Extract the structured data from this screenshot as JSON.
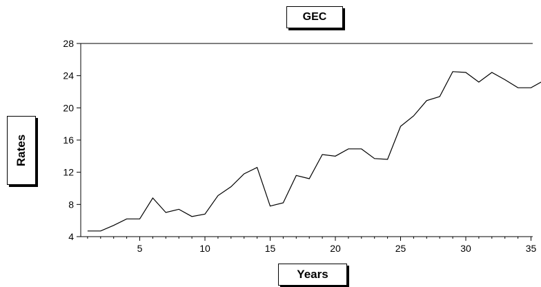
{
  "chart_data": {
    "type": "line",
    "title": "GEC",
    "xlabel": "Years",
    "ylabel": "Rates",
    "xlim": [
      1,
      36
    ],
    "ylim": [
      4,
      28
    ],
    "x_ticks": [
      5,
      10,
      15,
      20,
      25,
      30,
      35
    ],
    "y_ticks": [
      4,
      8,
      12,
      16,
      20,
      24,
      28
    ],
    "grid": false,
    "line_color": "#000000",
    "series": [
      {
        "x": [
          1,
          2,
          3,
          4,
          5,
          6,
          7,
          8,
          9,
          10,
          11,
          12,
          13,
          14,
          15,
          16,
          17,
          18,
          19,
          20,
          21,
          22,
          23,
          24,
          25,
          26,
          27,
          28,
          29,
          30,
          31,
          32,
          33,
          34,
          35,
          36
        ],
        "values": [
          4.7,
          4.7,
          5.4,
          6.2,
          6.2,
          8.8,
          7.0,
          7.4,
          6.5,
          6.8,
          9.1,
          10.2,
          11.8,
          12.6,
          7.8,
          8.2,
          11.6,
          11.2,
          14.2,
          14.0,
          14.9,
          14.9,
          13.7,
          13.6,
          17.7,
          19.0,
          20.9,
          21.4,
          24.5,
          24.4,
          23.2,
          24.4,
          23.5,
          22.5,
          22.5,
          23.4
        ]
      }
    ]
  }
}
